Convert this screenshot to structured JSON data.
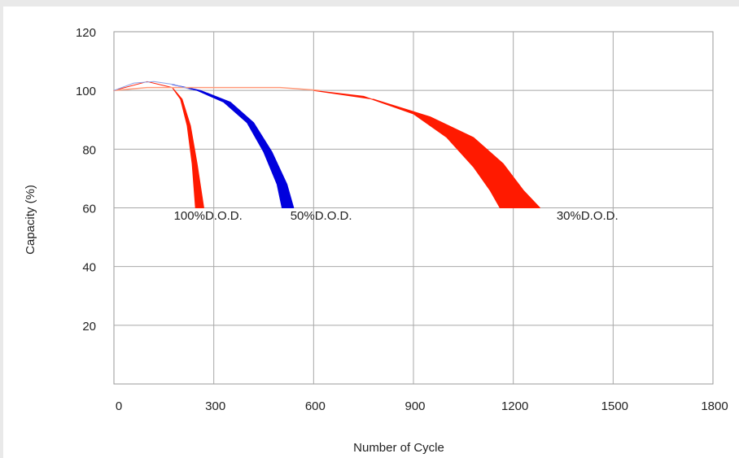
{
  "chart_data": {
    "type": "area",
    "title": "",
    "xlabel": "Number of Cycle",
    "ylabel": "Capacity (%)",
    "xlim": [
      0,
      1800
    ],
    "ylim": [
      0,
      120
    ],
    "x_ticks": [
      0,
      300,
      600,
      900,
      1200,
      1500,
      1800
    ],
    "y_ticks": [
      20,
      40,
      60,
      80,
      100,
      120
    ],
    "grid": true,
    "legend": "none",
    "series": [
      {
        "name": "100%D.O.D.",
        "color": "#ff1a00",
        "lower": [
          [
            0,
            100
          ],
          [
            100,
            103
          ],
          [
            175,
            101
          ],
          [
            200,
            97
          ],
          [
            220,
            88
          ],
          [
            235,
            75
          ],
          [
            245,
            60
          ]
        ],
        "upper": [
          [
            0,
            100
          ],
          [
            100,
            103
          ],
          [
            175,
            101
          ],
          [
            205,
            97
          ],
          [
            230,
            88
          ],
          [
            250,
            75
          ],
          [
            270,
            60
          ]
        ]
      },
      {
        "name": "50%D.O.D.",
        "color": "#0000dd",
        "lower": [
          [
            175,
            102
          ],
          [
            250,
            100
          ],
          [
            330,
            96
          ],
          [
            400,
            89
          ],
          [
            450,
            79
          ],
          [
            490,
            68
          ],
          [
            505,
            60
          ]
        ],
        "upper": [
          [
            175,
            102
          ],
          [
            260,
            100
          ],
          [
            350,
            96
          ],
          [
            420,
            89
          ],
          [
            475,
            79
          ],
          [
            520,
            68
          ],
          [
            540,
            60
          ]
        ]
      },
      {
        "name": "30%D.O.D.",
        "color": "#ff1a00",
        "lower": [
          [
            600,
            100
          ],
          [
            750,
            98
          ],
          [
            900,
            92
          ],
          [
            1000,
            84
          ],
          [
            1080,
            74
          ],
          [
            1130,
            66
          ],
          [
            1160,
            60
          ]
        ],
        "upper": [
          [
            600,
            100
          ],
          [
            780,
            97
          ],
          [
            950,
            91
          ],
          [
            1080,
            84
          ],
          [
            1170,
            75
          ],
          [
            1230,
            66
          ],
          [
            1280,
            60
          ]
        ]
      }
    ],
    "baseline": {
      "color": "#ff9a7a",
      "points": [
        [
          0,
          100
        ],
        [
          100,
          101
        ],
        [
          300,
          101
        ],
        [
          500,
          101
        ],
        [
          620,
          100
        ]
      ]
    },
    "annotations": [
      {
        "text": "100%D.O.D.",
        "x": 180,
        "y": 56
      },
      {
        "text": "50%D.O.D.",
        "x": 530,
        "y": 56
      },
      {
        "text": "30%D.O.D.",
        "x": 1330,
        "y": 56
      }
    ]
  }
}
